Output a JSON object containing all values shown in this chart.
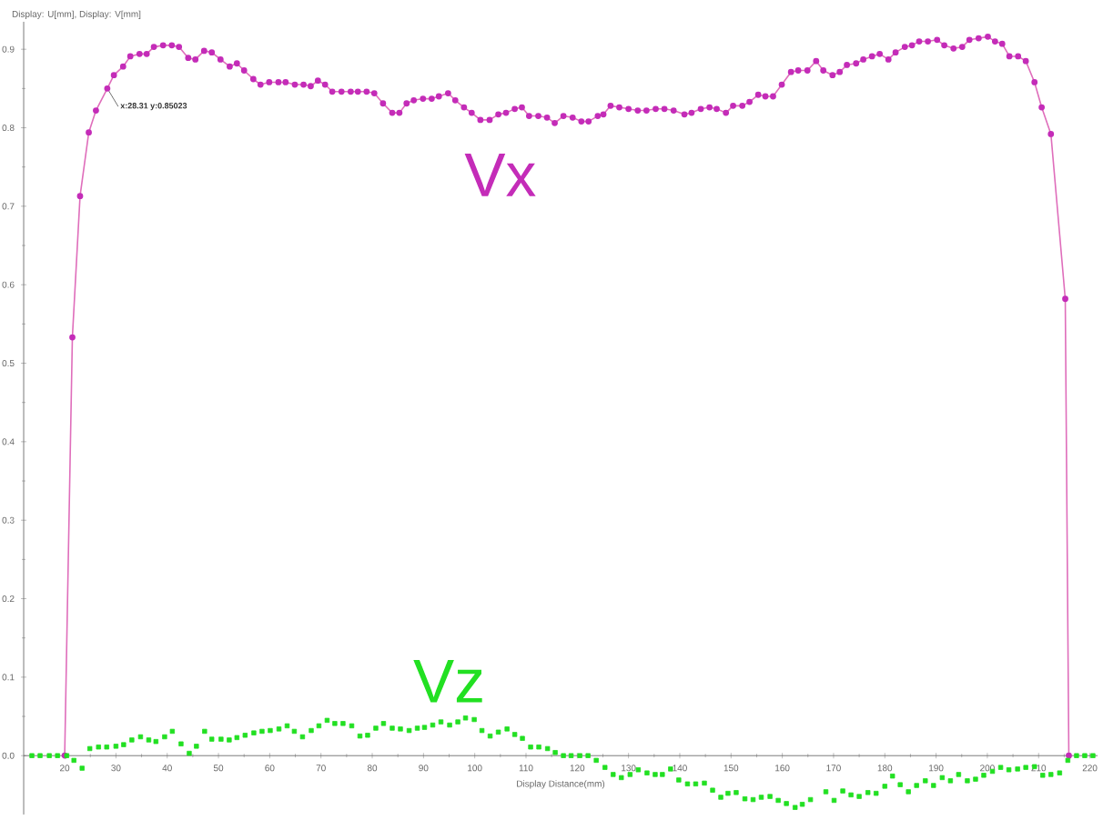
{
  "chart_data": {
    "type": "line",
    "ylabel": "Display: U[mm], Display: V[mm]",
    "xlabel": "Display Distance(mm)",
    "xlim": [
      12,
      221.5
    ],
    "ylim": [
      -0.075,
      0.935
    ],
    "xticks": [
      20,
      30,
      40,
      50,
      60,
      70,
      80,
      90,
      100,
      110,
      120,
      130,
      140,
      150,
      160,
      170,
      180,
      190,
      200,
      210,
      220
    ],
    "yticks": [
      {
        "value": 0,
        "label": "0.0"
      },
      0.1,
      0.2,
      0.3,
      0.4,
      0.5,
      0.6,
      0.7,
      0.8,
      0.9
    ],
    "grid": false,
    "legend": false,
    "annotations": [
      {
        "text": "x:28.31 y:0.85023",
        "x": 28.31,
        "y": 0.85023
      }
    ],
    "series": [
      {
        "name": "Vx",
        "marker": "circle",
        "line_style": "solid",
        "color": "#c42cb8",
        "x": [
          20,
          21.5,
          23.0,
          24.7,
          26.1,
          28.31,
          29.6,
          31.4,
          32.8,
          34.6,
          36.0,
          37.4,
          39.2,
          40.9,
          42.3,
          44.1,
          45.5,
          47.2,
          48.7,
          50.4,
          52.2,
          53.6,
          55.0,
          56.8,
          58.2,
          59.9,
          61.7,
          63.1,
          64.9,
          66.6,
          68.0,
          69.4,
          70.8,
          72.2,
          74.0,
          75.8,
          77.2,
          78.9,
          80.4,
          82.1,
          83.9,
          85.3,
          86.7,
          88.1,
          89.9,
          91.6,
          93.0,
          94.8,
          96.2,
          97.9,
          99.4,
          101.1,
          102.9,
          104.6,
          106.1,
          107.8,
          109.2,
          110.6,
          112.4,
          114.1,
          115.6,
          117.3,
          119.1,
          120.8,
          122.2,
          124.0,
          125.1,
          126.5,
          128.2,
          130.0,
          131.8,
          133.5,
          135.3,
          137.0,
          138.8,
          140.9,
          142.3,
          144.1,
          145.8,
          147.2,
          149.0,
          150.4,
          152.2,
          153.6,
          155.3,
          156.7,
          158.2,
          159.9,
          161.7,
          163.1,
          164.9,
          166.6,
          168.0,
          169.8,
          171.2,
          172.6,
          174.4,
          175.8,
          177.5,
          179.0,
          180.7,
          182.1,
          183.9,
          185.3,
          186.7,
          188.4,
          190.2,
          191.6,
          193.4,
          195.1,
          196.5,
          198.3,
          200.1,
          201.5,
          202.9,
          204.3,
          206.0,
          207.5,
          209.2,
          210.6,
          212.4,
          215.2,
          215.9
        ],
        "values": [
          0,
          0.533,
          0.713,
          0.794,
          0.822,
          0.85,
          0.867,
          0.878,
          0.891,
          0.894,
          0.894,
          0.903,
          0.905,
          0.905,
          0.903,
          0.889,
          0.887,
          0.898,
          0.896,
          0.887,
          0.878,
          0.882,
          0.873,
          0.862,
          0.855,
          0.858,
          0.858,
          0.858,
          0.855,
          0.855,
          0.853,
          0.86,
          0.855,
          0.846,
          0.846,
          0.846,
          0.846,
          0.846,
          0.844,
          0.831,
          0.819,
          0.819,
          0.831,
          0.835,
          0.837,
          0.837,
          0.84,
          0.844,
          0.835,
          0.826,
          0.819,
          0.81,
          0.81,
          0.817,
          0.819,
          0.824,
          0.826,
          0.815,
          0.815,
          0.813,
          0.806,
          0.815,
          0.813,
          0.808,
          0.808,
          0.815,
          0.817,
          0.828,
          0.826,
          0.824,
          0.822,
          0.822,
          0.824,
          0.824,
          0.822,
          0.817,
          0.819,
          0.824,
          0.826,
          0.824,
          0.819,
          0.828,
          0.828,
          0.833,
          0.842,
          0.84,
          0.84,
          0.855,
          0.871,
          0.873,
          0.873,
          0.885,
          0.873,
          0.867,
          0.871,
          0.88,
          0.882,
          0.887,
          0.891,
          0.894,
          0.887,
          0.896,
          0.903,
          0.905,
          0.91,
          0.91,
          0.912,
          0.905,
          0.901,
          0.903,
          0.912,
          0.914,
          0.916,
          0.91,
          0.907,
          0.891,
          0.891,
          0.885,
          0.858,
          0.826,
          0.792,
          0.582,
          0
        ]
      },
      {
        "name": "Vz",
        "type": "scatter",
        "marker": "square",
        "color": "#22e022",
        "x": [
          13.6,
          15.2,
          17.0,
          18.6,
          20.4,
          21.8,
          23.4,
          24.9,
          26.6,
          28.2,
          30.0,
          31.5,
          33.1,
          34.8,
          36.4,
          37.8,
          39.5,
          41.0,
          42.7,
          44.3,
          45.7,
          47.3,
          48.7,
          50.5,
          52.1,
          53.6,
          55.2,
          56.9,
          58.5,
          60.1,
          61.8,
          63.4,
          64.8,
          66.4,
          68.1,
          69.6,
          71.2,
          72.7,
          74.3,
          76.0,
          77.6,
          79.1,
          80.7,
          82.2,
          83.9,
          85.5,
          87.2,
          88.8,
          90.2,
          91.8,
          93.4,
          95.1,
          96.7,
          98.2,
          99.9,
          101.4,
          103.0,
          104.6,
          106.3,
          107.8,
          109.3,
          110.9,
          112.5,
          114.2,
          115.7,
          117.3,
          118.8,
          120.5,
          122.1,
          123.7,
          125.4,
          127.0,
          128.6,
          130.3,
          131.9,
          133.6,
          135.2,
          136.6,
          138.2,
          139.8,
          141.5,
          143.1,
          144.8,
          146.4,
          148.0,
          149.4,
          151.0,
          152.7,
          154.3,
          155.9,
          157.6,
          159.2,
          160.8,
          162.5,
          163.9,
          165.5,
          168.5,
          170.1,
          171.8,
          173.4,
          175.0,
          176.7,
          178.3,
          180.0,
          181.5,
          183.0,
          184.6,
          186.2,
          187.9,
          189.5,
          191.2,
          192.8,
          194.4,
          196.1,
          197.7,
          199.3,
          201.0,
          202.6,
          204.2,
          205.9,
          207.5,
          209.2,
          210.8,
          212.4,
          214.1,
          215.7,
          217.4,
          219.0,
          220.6
        ],
        "values": [
          0,
          0,
          0,
          0,
          0,
          -0.006,
          -0.016,
          0.009,
          0.011,
          0.011,
          0.012,
          0.014,
          0.02,
          0.024,
          0.02,
          0.018,
          0.024,
          0.031,
          0.015,
          0.003,
          0.012,
          0.031,
          0.021,
          0.021,
          0.02,
          0.023,
          0.026,
          0.029,
          0.031,
          0.032,
          0.034,
          0.038,
          0.031,
          0.024,
          0.032,
          0.038,
          0.045,
          0.041,
          0.041,
          0.038,
          0.025,
          0.026,
          0.035,
          0.041,
          0.035,
          0.034,
          0.032,
          0.035,
          0.036,
          0.039,
          0.043,
          0.039,
          0.043,
          0.048,
          0.046,
          0.032,
          0.025,
          0.03,
          0.034,
          0.027,
          0.022,
          0.011,
          0.011,
          0.009,
          0.004,
          0,
          0,
          0,
          0,
          -0.006,
          -0.015,
          -0.024,
          -0.028,
          -0.024,
          -0.018,
          -0.022,
          -0.024,
          -0.024,
          -0.017,
          -0.031,
          -0.036,
          -0.036,
          -0.035,
          -0.044,
          -0.053,
          -0.048,
          -0.047,
          -0.055,
          -0.056,
          -0.053,
          -0.052,
          -0.057,
          -0.061,
          -0.066,
          -0.062,
          -0.056,
          -0.046,
          -0.057,
          -0.045,
          -0.05,
          -0.052,
          -0.047,
          -0.048,
          -0.039,
          -0.026,
          -0.037,
          -0.046,
          -0.038,
          -0.032,
          -0.038,
          -0.028,
          -0.032,
          -0.024,
          -0.032,
          -0.03,
          -0.025,
          -0.02,
          -0.015,
          -0.018,
          -0.017,
          -0.015,
          -0.014,
          -0.025,
          -0.024,
          -0.022,
          -0.006,
          0,
          0,
          0
        ]
      }
    ]
  }
}
